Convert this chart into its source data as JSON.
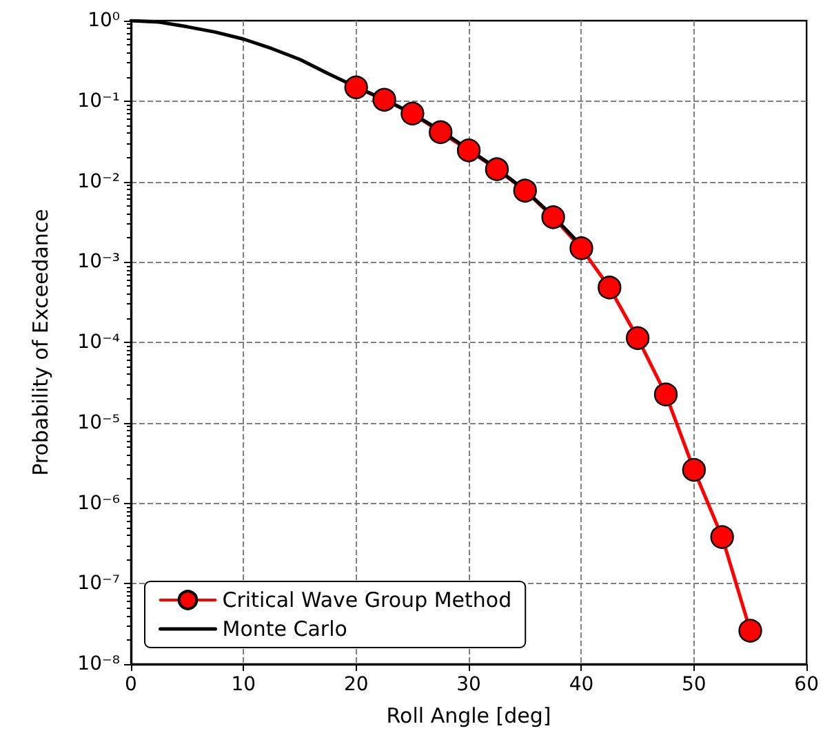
{
  "chart_data": {
    "type": "line",
    "xlabel": "Roll Angle [deg]",
    "ylabel": "Probability of Exceedance",
    "log": "y",
    "grid": true,
    "legend": "bottom left",
    "line_style": "solid",
    "xlim": [
      0,
      60
    ],
    "xticks": [
      0,
      10,
      20,
      30,
      40,
      50,
      60
    ],
    "ylim": [
      1e-08,
      1
    ],
    "yticks": [
      {
        "value": 1,
        "label": "10⁰"
      },
      {
        "value": 0.1,
        "label": "10⁻¹"
      },
      {
        "value": 0.01,
        "label": "10⁻²"
      },
      {
        "value": 0.001,
        "label": "10⁻³"
      },
      {
        "value": 0.0001,
        "label": "10⁻⁴"
      },
      {
        "value": 1e-05,
        "label": "10⁻⁵"
      },
      {
        "value": 1e-06,
        "label": "10⁻⁶"
      },
      {
        "value": 1e-07,
        "label": "10⁻⁷"
      },
      {
        "value": 1e-08,
        "label": "10⁻⁸"
      }
    ],
    "series": [
      {
        "name": "Critical Wave Group Method",
        "color": "#ff0000",
        "marker": "circle",
        "x": [
          20,
          22.5,
          25,
          27.5,
          30,
          32.5,
          35,
          37.5,
          40,
          42.5,
          45,
          47.5,
          50,
          52.5,
          55
        ],
        "values": [
          0.148,
          0.104,
          0.07,
          0.041,
          0.0244,
          0.0142,
          0.0077,
          0.0036,
          0.00148,
          0.00048,
          0.000113,
          2.25e-05,
          2.6e-06,
          3.8e-07,
          2.6e-08
        ]
      },
      {
        "name": "Monte Carlo",
        "color": "#000000",
        "marker": "none",
        "x": [
          0,
          2.5,
          5,
          7.5,
          10,
          12.5,
          15,
          17.5,
          20,
          22.5,
          25,
          27.5,
          30,
          32.5,
          35,
          37.5,
          40
        ],
        "values": [
          1,
          0.96,
          0.84,
          0.72,
          0.59,
          0.45,
          0.33,
          0.22,
          0.15,
          0.105,
          0.07,
          0.043,
          0.025,
          0.0145,
          0.0078,
          0.0037,
          0.0016
        ]
      }
    ]
  }
}
